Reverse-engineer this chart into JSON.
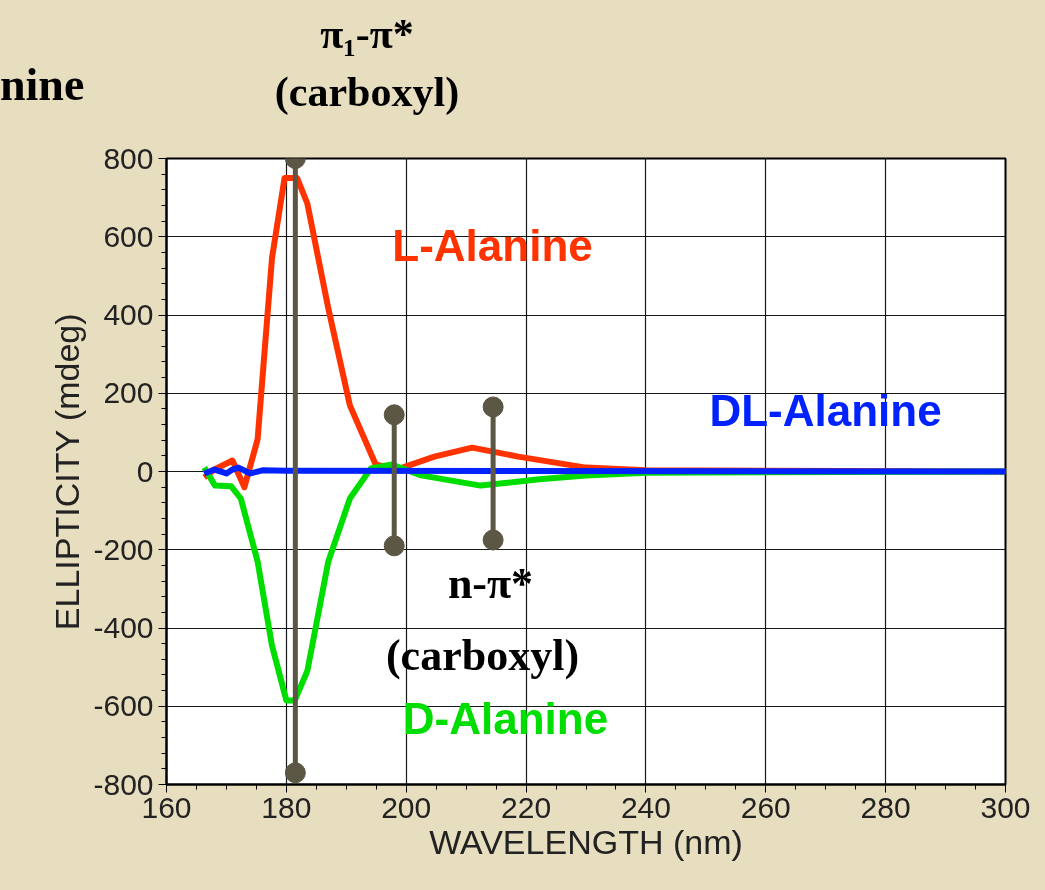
{
  "chart_data": {
    "type": "line",
    "title": "nine",
    "xlabel": "WAVELENGTH (nm)",
    "ylabel": "ELLIPTICITY (mdeg)",
    "xlim": [
      160,
      300
    ],
    "ylim": [
      -800,
      800
    ],
    "xticks": [
      160,
      180,
      200,
      220,
      240,
      260,
      280,
      300
    ],
    "yticks": [
      -800,
      -600,
      -400,
      -200,
      0,
      200,
      400,
      600,
      800
    ],
    "grid": true,
    "legend": false,
    "line_style": "solid",
    "series": [
      {
        "name": "L-Alanine",
        "color": "#ff3300",
        "x": [
          166.3,
          168,
          171,
          173,
          175.2,
          177.6,
          179.7,
          181.8,
          183.5,
          187,
          190.6,
          194.9,
          198.4,
          204.7,
          211,
          218.7,
          230,
          240,
          300
        ],
        "values": [
          -15,
          5,
          28,
          -40,
          82,
          545,
          750,
          750,
          685,
          417,
          169,
          18,
          5,
          38,
          61,
          38,
          10,
          3,
          0
        ]
      },
      {
        "name": "D-Alanine",
        "color": "#00dd00",
        "x": [
          166.3,
          168.1,
          170.8,
          172.4,
          175.2,
          177.6,
          180,
          181.4,
          183.5,
          187,
          190.6,
          194.1,
          197.6,
          202.5,
          212.4,
          222.2,
          230,
          240,
          300
        ],
        "values": [
          10,
          -36,
          -38,
          -69,
          -230,
          -445,
          -585,
          -585,
          -510,
          -230,
          -69,
          8,
          18,
          -10,
          -36,
          -20,
          -10,
          -3,
          0
        ]
      },
      {
        "name": "DL-Alanine",
        "color": "#0022ff",
        "x": [
          166.3,
          168,
          170,
          171,
          172,
          174,
          176,
          180,
          300
        ],
        "values": [
          -5,
          5,
          -5,
          5,
          10,
          -5,
          3,
          2,
          0
        ]
      },
      {
        "color": "#5c5644",
        "marker": "circle",
        "x": [
          181.5,
          181.5,
          null,
          198,
          198,
          null,
          214.5,
          214.5
        ],
        "values": [
          800,
          -770,
          null,
          145,
          -190,
          null,
          165,
          -175
        ]
      }
    ],
    "annotations": [
      "π₁-π*\n(carboxyl)",
      "n-π*\n(carboxyl)"
    ]
  }
}
